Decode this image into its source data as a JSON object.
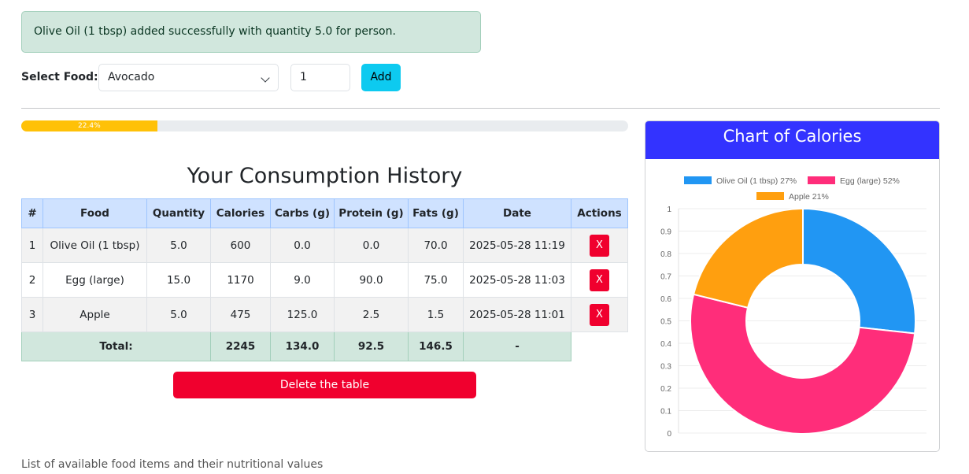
{
  "alert": {
    "message": "Olive Oil (1 tbsp) added successfully with quantity 5.0 for person."
  },
  "form": {
    "label": "Select Food:",
    "selected_food": "Avocado",
    "quantity_value": "1",
    "add_label": "Add"
  },
  "progress": {
    "value": 22.4,
    "label": "22.4%",
    "color": "#ffc107"
  },
  "history": {
    "title": "Your Consumption History",
    "headers": [
      "#",
      "Food",
      "Quantity",
      "Calories",
      "Carbs (g)",
      "Protein (g)",
      "Fats (g)",
      "Date",
      "Actions"
    ],
    "rows": [
      {
        "idx": "1",
        "food": "Olive Oil (1 tbsp)",
        "quantity": "5.0",
        "calories": "600",
        "carbs": "0.0",
        "protein": "0.0",
        "fats": "70.0",
        "date": "2025-05-28 11:19",
        "action": "X"
      },
      {
        "idx": "2",
        "food": "Egg (large)",
        "quantity": "15.0",
        "calories": "1170",
        "carbs": "9.0",
        "protein": "90.0",
        "fats": "75.0",
        "date": "2025-05-28 11:03",
        "action": "X"
      },
      {
        "idx": "3",
        "food": "Apple",
        "quantity": "5.0",
        "calories": "475",
        "carbs": "125.0",
        "protein": "2.5",
        "fats": "1.5",
        "date": "2025-05-28 11:01",
        "action": "X"
      }
    ],
    "totals": {
      "label": "Total:",
      "calories": "2245",
      "carbs": "134.0",
      "protein": "92.5",
      "fats": "146.5",
      "date": "-"
    },
    "delete_label": "Delete the table"
  },
  "footer": {
    "text": "List of available food items and their nutritional values"
  },
  "chart_card": {
    "header": "Chart of Calories",
    "header_color": "#3333ff"
  },
  "chart_data": {
    "type": "pie",
    "title": "Chart of Calories",
    "labels": [
      "Olive Oil (1 tbsp) 27%",
      "Egg (large) 52%",
      "Apple 21%"
    ],
    "values": [
      600,
      1170,
      475
    ],
    "colors": [
      "#2196f3",
      "#ff2d7a",
      "#ff9f0f"
    ],
    "yticks": [
      "0",
      "0.1",
      "0.2",
      "0.3",
      "0.4",
      "0.5",
      "0.6",
      "0.7",
      "0.8",
      "0.9",
      "1"
    ],
    "legend_position": "top",
    "grid": true
  }
}
